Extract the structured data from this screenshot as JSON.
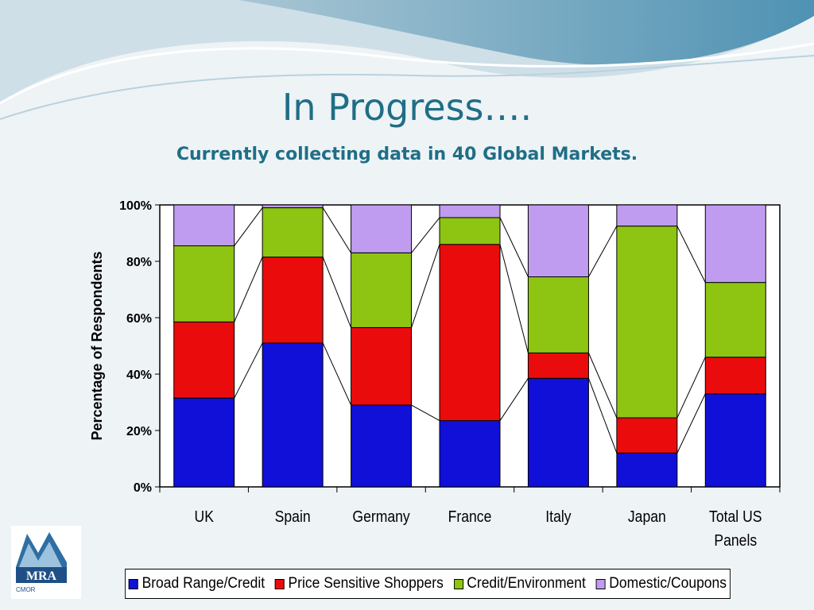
{
  "slide": {
    "title": "In Progress….",
    "subtitle": "Currently collecting data in 40 Global Markets."
  },
  "logo": {
    "text": "MRA",
    "sub": "CMOR"
  },
  "colors": {
    "Broad Range/Credit": "#1010d8",
    "Price Sensitive Shoppers": "#ea0c0c",
    "Credit/Environment": "#8ec412",
    "Domestic/Coupons": "#c09cf0"
  },
  "chart_data": {
    "type": "bar",
    "stacked": true,
    "stack_mode": "percent",
    "categories": [
      "UK",
      "Spain",
      "Germany",
      "France",
      "Italy",
      "Japan",
      "Total US Panels"
    ],
    "series": [
      {
        "name": "Broad Range/Credit",
        "values": [
          31.5,
          51,
          29,
          23.5,
          38.5,
          12,
          33
        ]
      },
      {
        "name": "Price Sensitive Shoppers",
        "values": [
          27,
          30.5,
          27.5,
          62.5,
          9,
          12.5,
          13
        ]
      },
      {
        "name": "Credit/Environment",
        "values": [
          27,
          17.5,
          26.5,
          9.5,
          27,
          68,
          26.5
        ]
      },
      {
        "name": "Domestic/Coupons",
        "values": [
          14.5,
          1,
          17,
          4.5,
          25.5,
          7.5,
          27.5
        ]
      }
    ],
    "ylabel": "Percentage of Respondents",
    "xlabel": "",
    "ylim": [
      0,
      100
    ],
    "yticks": [
      "0%",
      "20%",
      "40%",
      "60%",
      "80%",
      "100%"
    ],
    "legend": "bottom",
    "series_lines": true
  }
}
